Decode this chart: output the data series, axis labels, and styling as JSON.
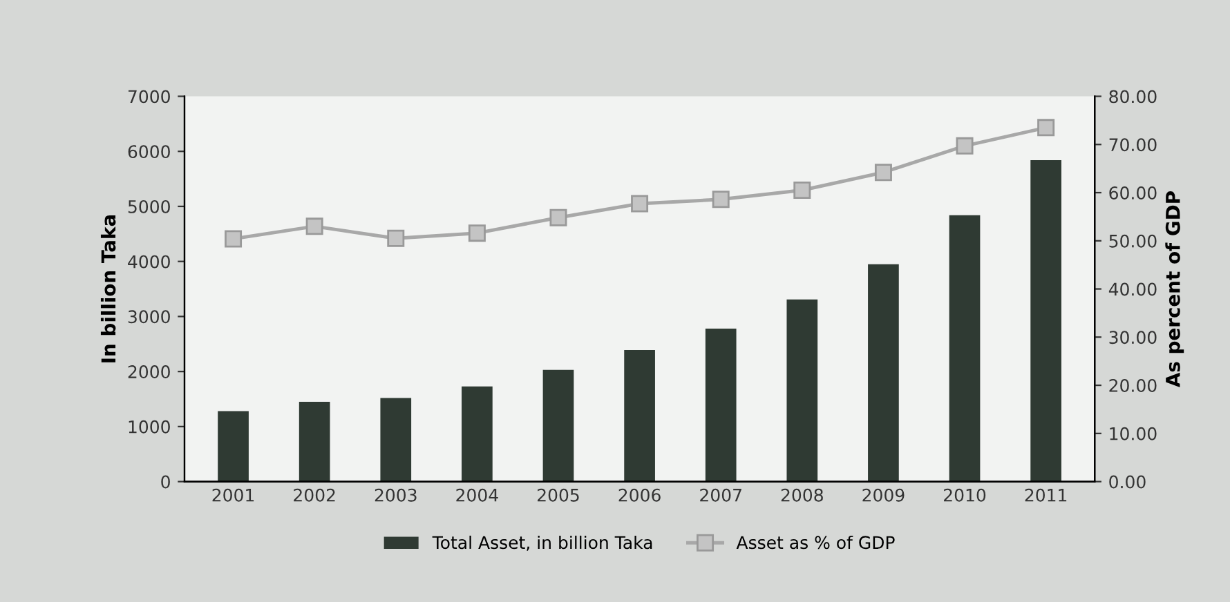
{
  "chart_data": {
    "type": "bar",
    "categories": [
      "2001",
      "2002",
      "2003",
      "2004",
      "2005",
      "2006",
      "2007",
      "2008",
      "2009",
      "2010",
      "2011"
    ],
    "ylabel": "In billion Taka",
    "y2label": "As percent of GDP",
    "series": [
      {
        "name": "Total Asset, in billion Taka",
        "color": "#2f3a33",
        "values": [
          1280,
          1450,
          1520,
          1730,
          2030,
          2390,
          2780,
          3310,
          3950,
          4840,
          5840
        ]
      },
      {
        "name": "Asset as % of GDP",
        "type": "line",
        "axis": "y2",
        "color": "#a8a8a8",
        "marker": "square",
        "values": [
          50.4,
          53.0,
          50.5,
          51.6,
          54.8,
          57.7,
          58.6,
          60.5,
          64.2,
          69.7,
          73.5
        ]
      }
    ],
    "ylim": [
      0,
      7000
    ],
    "yticks": [
      0,
      1000,
      2000,
      3000,
      4000,
      5000,
      6000,
      7000
    ],
    "y2lim": [
      0,
      80
    ],
    "y2ticks": [
      {
        "value": 0,
        "label": "0.00"
      },
      {
        "value": 10,
        "label": "10.00"
      },
      {
        "value": 20,
        "label": "20.00"
      },
      {
        "value": 30,
        "label": "30.00"
      },
      {
        "value": 40,
        "label": "40.00"
      },
      {
        "value": 50,
        "label": "50.00"
      },
      {
        "value": 60,
        "label": "60.00"
      },
      {
        "value": 70,
        "label": "70.00"
      },
      {
        "value": 80,
        "label": "80.00"
      }
    ],
    "grid": false,
    "legend": "bottom"
  }
}
